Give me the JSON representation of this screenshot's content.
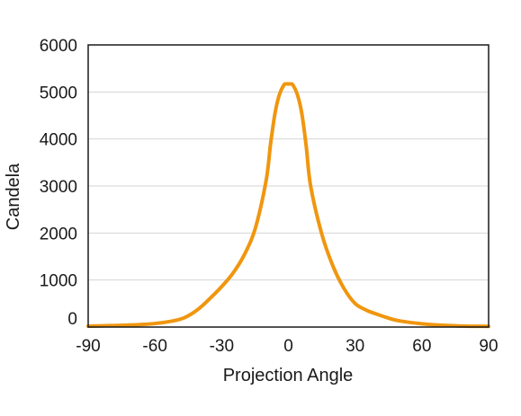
{
  "chart_data": {
    "type": "line",
    "title": "",
    "xlabel": "Projection Angle",
    "ylabel": "Candela",
    "xlim": [
      -90,
      90
    ],
    "ylim": [
      0,
      6000
    ],
    "xticks": [
      -90,
      -60,
      -30,
      0,
      30,
      60,
      90
    ],
    "yticks": [
      0,
      1000,
      2000,
      3000,
      4000,
      5000,
      6000
    ],
    "xtick_labels": [
      "-90",
      "-60",
      "-30",
      "0",
      "30",
      "60",
      "90"
    ],
    "ytick_labels": [
      "0",
      "1000",
      "2000",
      "3000",
      "4000",
      "5000",
      "6000"
    ],
    "grid": "horizontal",
    "legend": "none",
    "series": [
      {
        "color": "#F0960F",
        "x": [
          -90,
          -80,
          -70,
          -60,
          -50,
          -45,
          -40,
          -35,
          -30,
          -25,
          -20,
          -15,
          -10,
          -8,
          -6,
          -4,
          -2,
          -1,
          0,
          1,
          2,
          4,
          6,
          8,
          10,
          15,
          20,
          25,
          30,
          35,
          40,
          45,
          50,
          60,
          70,
          80,
          90
        ],
        "y": [
          20,
          30,
          45,
          75,
          150,
          240,
          400,
          620,
          860,
          1140,
          1520,
          2080,
          3120,
          3900,
          4550,
          4950,
          5150,
          5170,
          5170,
          5170,
          5150,
          4950,
          4550,
          3850,
          3000,
          1980,
          1300,
          820,
          500,
          360,
          270,
          190,
          130,
          70,
          35,
          20,
          15
        ]
      }
    ]
  }
}
